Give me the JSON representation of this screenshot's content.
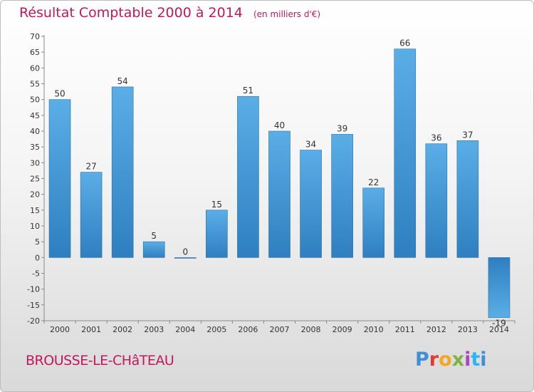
{
  "title": "Résultat Comptable 2000 à 2014",
  "unit": "(en milliers d'€)",
  "commune": "BROUSSE-LE-CHâTEAU",
  "logo": [
    "P",
    "r",
    "o",
    "x",
    "i",
    "t",
    "i"
  ],
  "colors": {
    "title": "#c2185b",
    "bar_light": "#5aaee6",
    "bar_dark": "#2f7fc0"
  },
  "chart_data": {
    "type": "bar",
    "title": "Résultat Comptable 2000 à 2014",
    "xlabel": "",
    "ylabel": "",
    "ylim": [
      -20,
      70
    ],
    "yticks": [
      70,
      65,
      60,
      55,
      50,
      45,
      40,
      35,
      30,
      25,
      20,
      15,
      10,
      5,
      0,
      -5,
      -10,
      -15,
      -20
    ],
    "grid": false,
    "categories": [
      "2000",
      "2001",
      "2002",
      "2003",
      "2004",
      "2005",
      "2006",
      "2007",
      "2008",
      "2009",
      "2010",
      "2011",
      "2012",
      "2013",
      "2014"
    ],
    "values": [
      50,
      27,
      54,
      5,
      0,
      15,
      51,
      40,
      34,
      39,
      22,
      66,
      36,
      37,
      -19
    ],
    "value_labels": [
      "50",
      "27",
      "54",
      "5",
      "0",
      "15",
      "51",
      "40",
      "34",
      "39",
      "22",
      "66",
      "36",
      "37",
      "-19"
    ]
  }
}
